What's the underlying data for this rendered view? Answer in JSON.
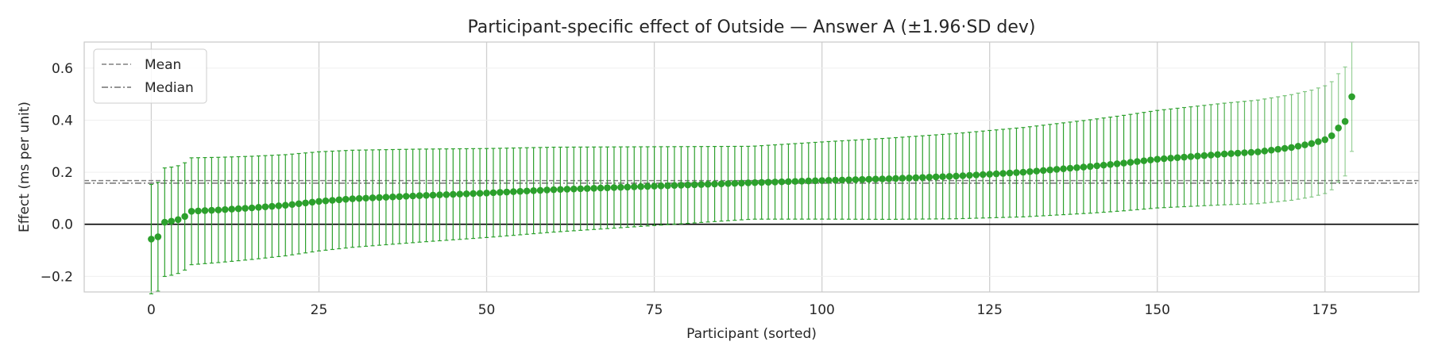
{
  "chart_data": {
    "type": "scatter",
    "title": "Participant-specific effect of Outside — Answer A (±1.96·SD dev)",
    "xlabel": "Participant (sorted)",
    "ylabel": "Effect (ms per unit)",
    "xlim": [
      -10,
      189
    ],
    "ylim": [
      -0.26,
      0.7
    ],
    "x_ticks": [
      0,
      25,
      50,
      75,
      100,
      125,
      150,
      175
    ],
    "y_ticks": [
      -0.2,
      0.0,
      0.2,
      0.4,
      0.6
    ],
    "x_tick_labels": [
      "0",
      "25",
      "50",
      "75",
      "100",
      "125",
      "150",
      "175"
    ],
    "y_tick_labels": [
      "−0.2",
      "0.0",
      "0.2",
      "0.4",
      "0.6"
    ],
    "grid": true,
    "legend_position": "top-left",
    "legend": [
      {
        "label": "Mean",
        "style": "dashed"
      },
      {
        "label": "Median",
        "style": "dashdot"
      }
    ],
    "mean": 0.168,
    "median": 0.158,
    "zero_line": 0.0,
    "n_participants": 180,
    "colors": {
      "points": "#2ca02c",
      "errorbars": "#2ca02c",
      "mean_line": "#808080",
      "median_line": "#707070",
      "zero_line": "#000000"
    },
    "errorbar_halfwidth_range": [
      0.14,
      0.21
    ],
    "errorbar_halfwidth_fn": "hw = 0.14 + 0.07 * |2*i/(n-1) - 1|",
    "effects_anchors": [
      [
        0,
        -0.057
      ],
      [
        1,
        -0.048
      ],
      [
        2,
        0.008
      ],
      [
        3,
        0.012
      ],
      [
        4,
        0.018
      ],
      [
        5,
        0.03
      ],
      [
        6,
        0.05
      ],
      [
        10,
        0.055
      ],
      [
        15,
        0.063
      ],
      [
        20,
        0.073
      ],
      [
        25,
        0.088
      ],
      [
        30,
        0.098
      ],
      [
        40,
        0.11
      ],
      [
        50,
        0.12
      ],
      [
        60,
        0.133
      ],
      [
        70,
        0.142
      ],
      [
        80,
        0.151
      ],
      [
        90,
        0.16
      ],
      [
        100,
        0.168
      ],
      [
        110,
        0.175
      ],
      [
        120,
        0.185
      ],
      [
        130,
        0.2
      ],
      [
        140,
        0.222
      ],
      [
        145,
        0.235
      ],
      [
        150,
        0.25
      ],
      [
        160,
        0.27
      ],
      [
        165,
        0.278
      ],
      [
        170,
        0.295
      ],
      [
        173,
        0.31
      ],
      [
        175,
        0.325
      ],
      [
        176,
        0.34
      ],
      [
        177,
        0.37
      ],
      [
        178,
        0.395
      ],
      [
        179,
        0.49
      ]
    ]
  }
}
